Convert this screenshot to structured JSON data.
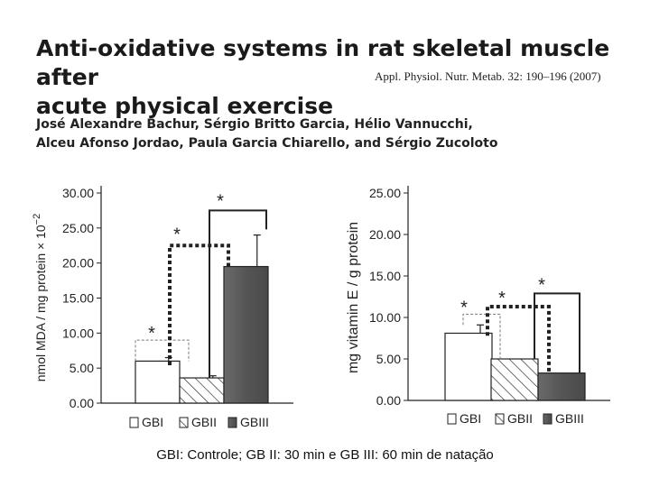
{
  "header": {
    "title_line1": "Anti-oxidative systems in rat skeletal muscle after",
    "title_line2": "acute physical exercise",
    "journal": "Appl. Physiol. Nutr. Metab. 32: 190–196 (2007)",
    "authors_line1": "José Alexandre Bachur, Sérgio Britto Garcia, Hélio Vannucchi,",
    "authors_line2": "Alceu Afonso Jordao, Paula Garcia Chiarello, and Sérgio Zucoloto"
  },
  "caption": "GBI: Controle; GB II: 30 min e GB III: 60 min de natação",
  "legend": {
    "items": [
      "GBI",
      "GBII",
      "GBIII"
    ]
  },
  "chart_data": [
    {
      "type": "bar",
      "ylabel": "nmol MDA / mg protein × 10",
      "ylabel_exponent": "−2",
      "ylim": [
        0,
        30
      ],
      "ticks": [
        "30.00",
        "25.00",
        "20.00",
        "15.00",
        "10.00",
        "5.00",
        "0.00"
      ],
      "categories": [
        "GBI",
        "GBII",
        "GBIII"
      ],
      "values": [
        6.0,
        3.6,
        19.5
      ],
      "errors": [
        0.5,
        0.3,
        4.5
      ],
      "annotations": [
        "*",
        "*",
        "*"
      ]
    },
    {
      "type": "bar",
      "ylabel": "mg vitamin E / g protein",
      "ylim": [
        0,
        25
      ],
      "ticks": [
        "25.00",
        "20.00",
        "15.00",
        "10.00",
        "5.00",
        "0.00"
      ],
      "categories": [
        "GBI",
        "GBII",
        "GBIII"
      ],
      "values": [
        8.1,
        5.0,
        3.3
      ],
      "errors": [
        1.0,
        0,
        0
      ],
      "annotations": [
        "*",
        "*",
        "*"
      ]
    }
  ]
}
